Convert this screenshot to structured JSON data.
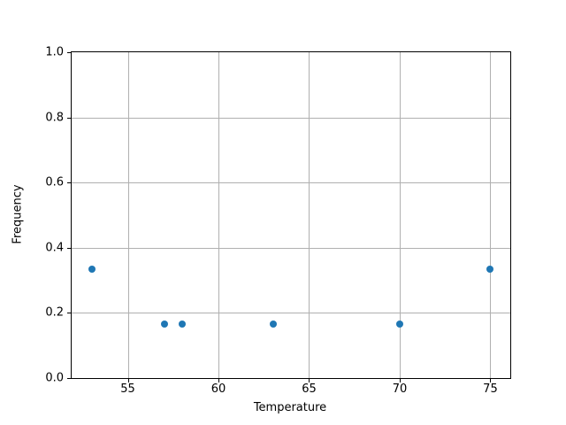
{
  "chart_data": {
    "type": "scatter",
    "title": "",
    "xlabel": "Temperature",
    "ylabel": "Frequency",
    "x": [
      53,
      57,
      58,
      63,
      70,
      75
    ],
    "y": [
      0.333,
      0.167,
      0.167,
      0.167,
      0.167,
      0.333
    ],
    "xlim": [
      51.9,
      76.1
    ],
    "ylim": [
      0.0,
      1.0
    ],
    "xticks": [
      55,
      60,
      65,
      70,
      75
    ],
    "ytick_labels": [
      "0.0",
      "0.2",
      "0.4",
      "0.6",
      "0.8",
      "1.0"
    ],
    "ytick_values": [
      0.0,
      0.2,
      0.4,
      0.6,
      0.8,
      1.0
    ],
    "grid": true,
    "legend_position": "none",
    "marker_color": "#1f77b4",
    "grid_color": "#b0b0b0",
    "spine_color": "#000000",
    "text_color": "#000000",
    "background": "#ffffff"
  }
}
